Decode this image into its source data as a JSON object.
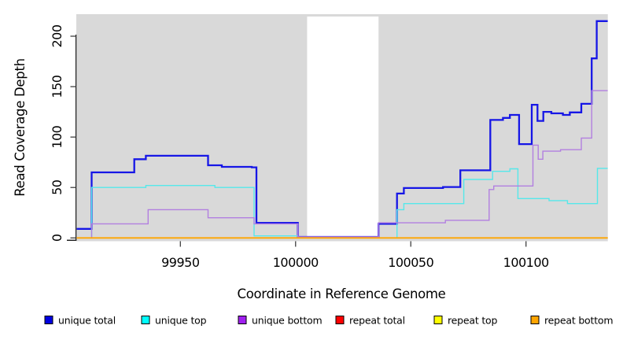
{
  "chart_data": {
    "type": "line",
    "step": true,
    "title": "",
    "xlabel": "Coordinate in Reference Genome",
    "ylabel": "Read Coverage Depth",
    "xlim": [
      99905,
      100135.5
    ],
    "ylim": [
      -3,
      221
    ],
    "x_ticks": [
      99950,
      100000,
      100050,
      100100
    ],
    "y_ticks": [
      0,
      50,
      100,
      150,
      200
    ],
    "grid": false,
    "plot_bg_color": "#d9d9d9",
    "page_bg_color": "#ffffff",
    "masked_region": {
      "x_start": 100005,
      "x_end": 100036,
      "color": "#ffffff"
    },
    "legend_position": "bottom",
    "series": [
      {
        "name": "unique total",
        "color": "#1616e6",
        "legend_color": "#0000e0",
        "width": 2.3,
        "points": [
          [
            99905,
            9
          ],
          [
            99911.5,
            65
          ],
          [
            99930,
            78
          ],
          [
            99935,
            81.5
          ],
          [
            99962,
            72
          ],
          [
            99968,
            70.5
          ],
          [
            99981,
            70
          ],
          [
            99983,
            15
          ],
          [
            100001,
            1
          ],
          [
            100036,
            14
          ],
          [
            100044,
            44
          ],
          [
            100047,
            49.5
          ],
          [
            100064,
            50.5
          ],
          [
            100071.5,
            67
          ],
          [
            100084.5,
            117
          ],
          [
            100090,
            119
          ],
          [
            100093,
            122
          ],
          [
            100097,
            93
          ],
          [
            100102.5,
            132
          ],
          [
            100105,
            116
          ],
          [
            100107.5,
            125
          ],
          [
            100111,
            123.5
          ],
          [
            100116,
            122
          ],
          [
            100119,
            124.5
          ],
          [
            100124,
            133
          ],
          [
            100128.5,
            178
          ],
          [
            100130.7,
            215
          ]
        ]
      },
      {
        "name": "unique top",
        "color": "#55e8ea",
        "legend_color": "#00ffff",
        "width": 1.4,
        "points": [
          [
            99905,
            0
          ],
          [
            99911.5,
            50
          ],
          [
            99935,
            52
          ],
          [
            99965,
            50
          ],
          [
            99982,
            2
          ],
          [
            100001,
            0
          ],
          [
            100044,
            28
          ],
          [
            100047,
            34
          ],
          [
            100073,
            58
          ],
          [
            100085.5,
            66
          ],
          [
            100093,
            68.5
          ],
          [
            100096.5,
            39
          ],
          [
            100110,
            37
          ],
          [
            100118,
            34
          ],
          [
            100131,
            69
          ]
        ]
      },
      {
        "name": "unique bottom",
        "color": "#b27fe0",
        "legend_color": "#a020f0",
        "width": 1.4,
        "points": [
          [
            99905,
            0
          ],
          [
            99911.5,
            14
          ],
          [
            99936,
            28
          ],
          [
            99962,
            20
          ],
          [
            99982,
            14
          ],
          [
            100001,
            1
          ],
          [
            100036,
            15
          ],
          [
            100065,
            17.5
          ],
          [
            100084,
            48
          ],
          [
            100086,
            51.5
          ],
          [
            100103,
            92
          ],
          [
            100105.3,
            78
          ],
          [
            100107.3,
            86
          ],
          [
            100115,
            87.5
          ],
          [
            100124,
            99
          ],
          [
            100128.5,
            146
          ]
        ]
      },
      {
        "name": "repeat total",
        "color": "#ff0000",
        "legend_color": "#ff0000",
        "width": 1.2,
        "points": [
          [
            99905,
            0
          ]
        ]
      },
      {
        "name": "repeat top",
        "color": "#ffff00",
        "legend_color": "#ffff00",
        "width": 1.2,
        "points": [
          [
            99905,
            0
          ]
        ]
      },
      {
        "name": "repeat bottom",
        "color": "#ffa500",
        "legend_color": "#ffa500",
        "width": 1.9,
        "points": [
          [
            99905,
            0
          ]
        ]
      }
    ]
  }
}
